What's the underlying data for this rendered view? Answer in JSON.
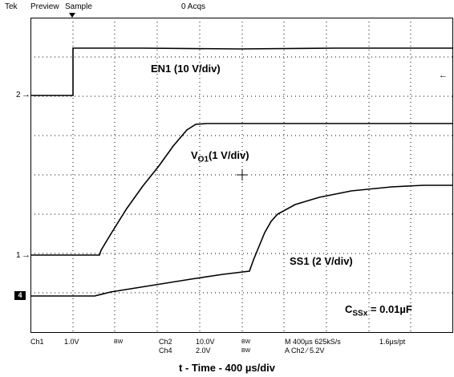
{
  "header": {
    "brand": "Tek",
    "mode": "Preview",
    "acq_mode": "Sample",
    "acq_count": "0 Acqs"
  },
  "scope": {
    "channel_markers": [
      {
        "label": "2"
      },
      {
        "label": "1"
      },
      {
        "label": "4"
      }
    ],
    "traces": [
      {
        "name": "EN1",
        "label": "EN1 (10 V/div)"
      },
      {
        "name": "VO1",
        "label_main": "V",
        "label_sub": "O1",
        "label_rest": "(1 V/div)"
      },
      {
        "name": "SS1",
        "label": "SS1 (2 V/div)"
      }
    ],
    "cap_label_main": "C",
    "cap_label_sub": "SSx",
    "cap_label_rest": " = 0.01µF"
  },
  "status_bar": {
    "ch1": "Ch1",
    "ch1_scale": "1.0V",
    "bw1": "BW",
    "ch2": "Ch2",
    "ch2_scale": "10.0V",
    "bw2": "BW",
    "ch4": "Ch4",
    "ch4_scale": "2.0V",
    "bw4": "BW",
    "timebase": "M 400µs 625kS/s",
    "trigger": "A  Ch2  ⁄  5.2V",
    "sample_interval": "1.6µs/pt"
  },
  "caption": "t - Time - 400 µs/div"
}
